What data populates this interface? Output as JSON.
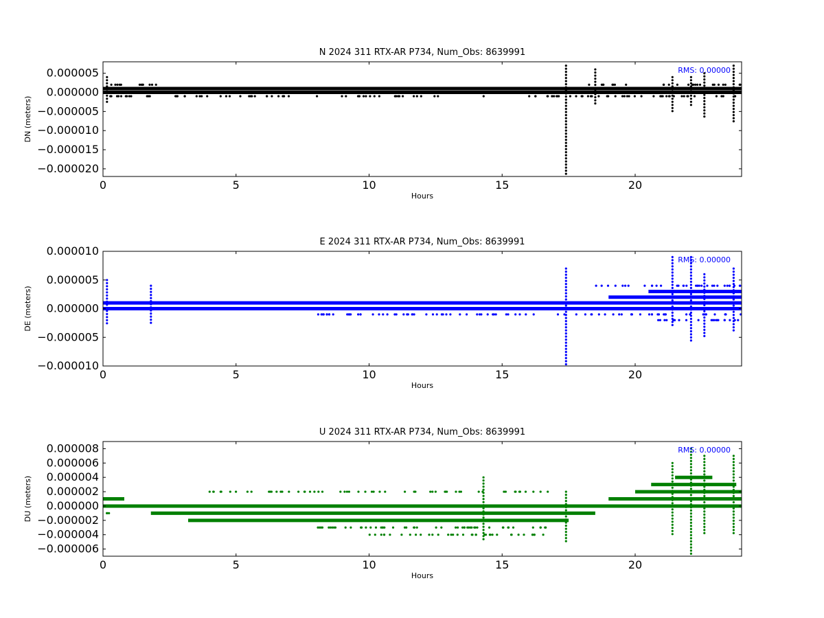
{
  "chart_data": [
    {
      "type": "scatter",
      "title": "N 2024 311 RTX-AR  P734, Num_Obs: 8639991",
      "xlabel": "Hours",
      "ylabel": "DN (meters)",
      "rms_label": "RMS:  0.00000",
      "color": "#000000",
      "xlim": [
        0,
        24
      ],
      "ylim": [
        -2.2e-05,
        8e-06
      ],
      "x_ticks": [
        0,
        5,
        10,
        15,
        20
      ],
      "y_ticks": [
        -2e-05,
        -1.5e-05,
        -1e-05,
        -5e-06,
        0.0,
        5e-06
      ],
      "y_tick_labels": [
        "−0.000020",
        "−0.000015",
        "−0.000010",
        "−0.000005",
        "0.000000",
        "0.000005"
      ],
      "grid": false,
      "bands": [
        {
          "x": [
            0,
            24
          ],
          "y": 1e-06
        },
        {
          "x": [
            0,
            24
          ],
          "y": 0.0
        }
      ],
      "spikes": [
        {
          "x": 17.4,
          "ymin": -2.2e-05,
          "ymax": 7e-06
        },
        {
          "x": 18.5,
          "ymin": -3e-06,
          "ymax": 6e-06
        },
        {
          "x": 23.7,
          "ymin": -8e-06,
          "ymax": 7e-06
        },
        {
          "x": 22.6,
          "ymin": -7e-06,
          "ymax": 5e-06
        },
        {
          "x": 21.4,
          "ymin": -5e-06,
          "ymax": 4e-06
        },
        {
          "x": 22.1,
          "ymin": -4e-06,
          "ymax": 4e-06
        },
        {
          "x": 0.15,
          "ymin": -3e-06,
          "ymax": 4e-06
        }
      ],
      "clusters": [
        {
          "x": [
            0.1,
            2.0
          ],
          "y": 2e-06
        },
        {
          "x": [
            0.1,
            2.0
          ],
          "y": -1e-06
        },
        {
          "x": [
            2.7,
            7.0
          ],
          "y": -1e-06
        },
        {
          "x": [
            8.0,
            12.6
          ],
          "y": -1e-06
        },
        {
          "x": [
            14.0,
            24
          ],
          "y": -1e-06
        },
        {
          "x": [
            17.8,
            19.8
          ],
          "y": 2e-06
        },
        {
          "x": [
            20.9,
            24
          ],
          "y": 2e-06
        }
      ]
    },
    {
      "type": "scatter",
      "title": "E 2024 311 RTX-AR  P734, Num_Obs: 8639991",
      "xlabel": "Hours",
      "ylabel": "DE (meters)",
      "rms_label": "RMS:  0.00000",
      "color": "#0000ff",
      "xlim": [
        0,
        24
      ],
      "ylim": [
        -1e-05,
        1e-05
      ],
      "x_ticks": [
        0,
        5,
        10,
        15,
        20
      ],
      "y_ticks": [
        -1e-05,
        -5e-06,
        0.0,
        5e-06,
        1e-05
      ],
      "y_tick_labels": [
        "−0.000010",
        "−0.000005",
        "0.000000",
        "0.000005",
        "0.000010"
      ],
      "grid": false,
      "bands": [
        {
          "x": [
            0,
            24
          ],
          "y": 1e-06
        },
        {
          "x": [
            0,
            24
          ],
          "y": 0.0
        },
        {
          "x": [
            19.0,
            24
          ],
          "y": 2e-06
        },
        {
          "x": [
            20.5,
            24
          ],
          "y": 3e-06
        }
      ],
      "spikes": [
        {
          "x": 17.4,
          "ymin": -1e-05,
          "ymax": 7e-06
        },
        {
          "x": 0.15,
          "ymin": -3e-06,
          "ymax": 5e-06
        },
        {
          "x": 1.8,
          "ymin": -3e-06,
          "ymax": 4e-06
        },
        {
          "x": 21.4,
          "ymin": -3e-06,
          "ymax": 9e-06
        },
        {
          "x": 22.1,
          "ymin": -6e-06,
          "ymax": 9e-06
        },
        {
          "x": 22.6,
          "ymin": -5e-06,
          "ymax": 6e-06
        },
        {
          "x": 23.7,
          "ymin": -4e-06,
          "ymax": 7e-06
        }
      ],
      "clusters": [
        {
          "x": [
            8.0,
            24
          ],
          "y": -1e-06
        },
        {
          "x": [
            18.0,
            24
          ],
          "y": 4e-06
        },
        {
          "x": [
            20.0,
            24
          ],
          "y": -2e-06
        }
      ]
    },
    {
      "type": "scatter",
      "title": "U 2024 311 RTX-AR  P734, Num_Obs: 8639991",
      "xlabel": "Hours",
      "ylabel": "DU (meters)",
      "rms_label": "RMS:  0.00000",
      "color": "#008000",
      "xlim": [
        0,
        24
      ],
      "ylim": [
        -7e-06,
        9e-06
      ],
      "x_ticks": [
        0,
        5,
        10,
        15,
        20
      ],
      "y_ticks": [
        -6e-06,
        -4e-06,
        -2e-06,
        0.0,
        2e-06,
        4e-06,
        6e-06,
        8e-06
      ],
      "y_tick_labels": [
        "−0.000006",
        "−0.000004",
        "−0.000002",
        "0.000000",
        "0.000002",
        "0.000004",
        "0.000006",
        "0.000008"
      ],
      "grid": false,
      "bands": [
        {
          "x": [
            0,
            24
          ],
          "y": 0.0
        },
        {
          "x": [
            1.8,
            18.5
          ],
          "y": -1e-06
        },
        {
          "x": [
            3.2,
            17.5
          ],
          "y": -2e-06
        },
        {
          "x": [
            0,
            0.8
          ],
          "y": 1e-06
        },
        {
          "x": [
            19.0,
            24
          ],
          "y": 1e-06
        },
        {
          "x": [
            20.0,
            24
          ],
          "y": 2e-06
        },
        {
          "x": [
            20.6,
            23.8
          ],
          "y": 3e-06
        },
        {
          "x": [
            21.5,
            22.9
          ],
          "y": 4e-06
        }
      ],
      "spikes": [
        {
          "x": 22.1,
          "ymin": -7e-06,
          "ymax": 8e-06
        },
        {
          "x": 21.4,
          "ymin": -4e-06,
          "ymax": 6e-06
        },
        {
          "x": 22.6,
          "ymin": -4e-06,
          "ymax": 7e-06
        },
        {
          "x": 23.7,
          "ymin": -4e-06,
          "ymax": 7e-06
        },
        {
          "x": 17.4,
          "ymin": -5e-06,
          "ymax": 2e-06
        },
        {
          "x": 14.3,
          "ymin": -5e-06,
          "ymax": 4e-06
        }
      ],
      "clusters": [
        {
          "x": [
            4.0,
            17.0
          ],
          "y": 2e-06
        },
        {
          "x": [
            8.0,
            17.0
          ],
          "y": -3e-06
        },
        {
          "x": [
            10.0,
            16.8
          ],
          "y": -4e-06
        },
        {
          "x": [
            0.1,
            0.3
          ],
          "y": -1e-06
        }
      ]
    }
  ]
}
